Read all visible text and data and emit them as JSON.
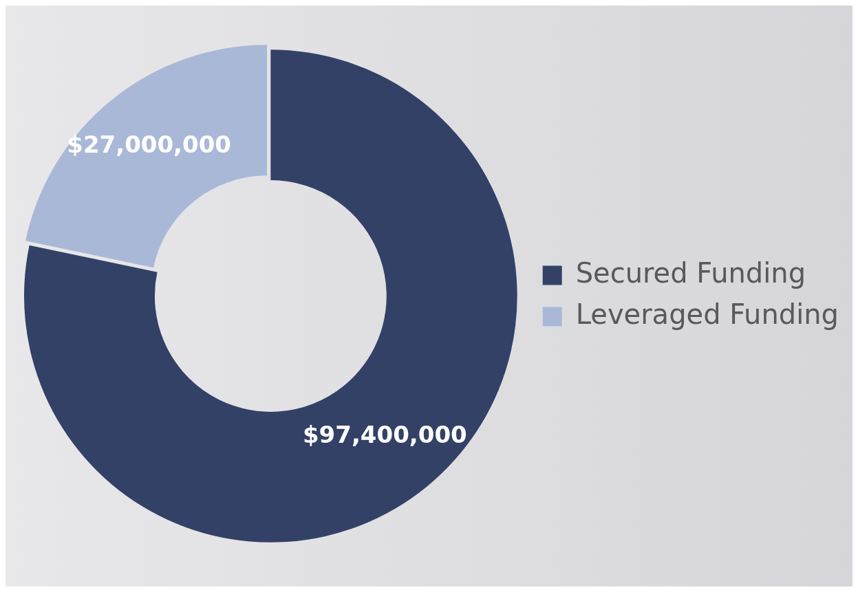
{
  "chart_data": {
    "type": "donut",
    "categories": [
      "Secured Funding",
      "Leveraged Funding"
    ],
    "values": [
      97400000,
      27000000
    ],
    "colors": [
      "#334167",
      "#aab8d8"
    ],
    "value_labels": [
      "$97,400,000",
      "$27,000,000"
    ],
    "legend": "right"
  }
}
